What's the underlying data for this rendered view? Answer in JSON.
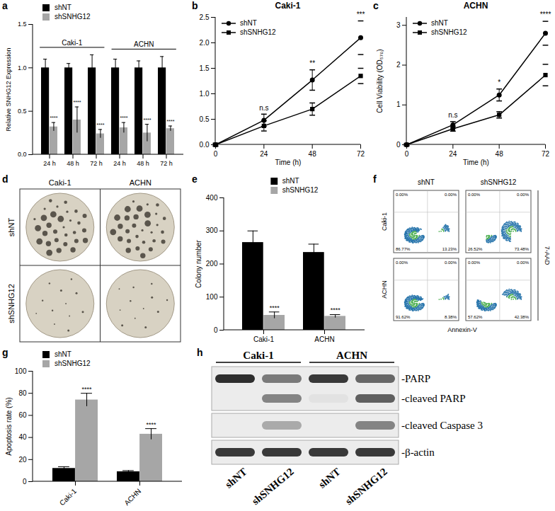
{
  "chart_data": [
    {
      "panel": "a",
      "type": "bar",
      "y_label": "Relative SNHG12 Expression",
      "categories": [
        "24 h",
        "48 h",
        "72 h",
        "24 h",
        "48 h",
        "72 h"
      ],
      "groups": [
        "Caki-1",
        "Caki-1",
        "Caki-1",
        "ACHN",
        "ACHN",
        "ACHN"
      ],
      "series": [
        {
          "name": "shNT",
          "color": "#000000",
          "values": [
            1,
            1,
            1,
            1,
            1,
            1
          ],
          "errors": [
            0.1,
            0.05,
            0.15,
            0.1,
            0.08,
            0.13
          ]
        },
        {
          "name": "shSNHG12",
          "color": "#a6a6a6",
          "values": [
            0.32,
            0.4,
            0.24,
            0.31,
            0.25,
            0.3
          ],
          "errors": [
            0.05,
            0.15,
            0.05,
            0.06,
            0.1,
            0.03
          ],
          "annotations": [
            "****",
            "****",
            "****",
            "****",
            "****",
            "****"
          ]
        }
      ],
      "ylim": [
        0,
        1.5
      ],
      "yticks": [
        {
          "value": 0,
          "label": "0.0"
        },
        {
          "value": 0.5,
          "label": "0.5"
        },
        {
          "value": 1,
          "label": "1.0"
        },
        {
          "value": 1.5,
          "label": "1.5"
        }
      ],
      "legend": "top-left"
    },
    {
      "panel": "b",
      "type": "line",
      "title": "Caki-1",
      "x_label": "Time (h)",
      "x": [
        0,
        24,
        48,
        72
      ],
      "series": [
        {
          "name": "shNT",
          "color": "#000000",
          "marker": "circle",
          "values": [
            0,
            0.48,
            1.27,
            2.1
          ],
          "errors": [
            0.03,
            0.12,
            0.2,
            0.33
          ]
        },
        {
          "name": "shSNHG12",
          "color": "#000000",
          "marker": "square",
          "values": [
            0,
            0.37,
            0.7,
            1.35
          ],
          "errors": [
            0.02,
            0.1,
            0.12,
            0.15
          ]
        }
      ],
      "annotations": [
        {
          "x": 24,
          "text": "n.s"
        },
        {
          "x": 48,
          "text": "**"
        },
        {
          "x": 72,
          "text": "***"
        }
      ],
      "xlim": [
        0,
        72
      ],
      "xticks": [
        0,
        24,
        48,
        72
      ],
      "ylim": [
        0,
        2.5
      ],
      "yticks": [
        {
          "value": 0,
          "label": "0.0"
        },
        {
          "value": 0.5,
          "label": "0.5"
        },
        {
          "value": 1,
          "label": "1.0"
        },
        {
          "value": 1.5,
          "label": "1.5"
        },
        {
          "value": 2,
          "label": "2.0"
        },
        {
          "value": 2.5,
          "label": "2.5"
        }
      ],
      "legend": "top-left"
    },
    {
      "panel": "c",
      "type": "line",
      "title": "ACHN",
      "x_label": "Time (h)",
      "y_label": "Cell Viability (OD₅₇₀)",
      "x": [
        0,
        24,
        48,
        72
      ],
      "series": [
        {
          "name": "shNT",
          "color": "#000000",
          "marker": "circle",
          "values": [
            0,
            0.5,
            1.25,
            2.8
          ],
          "errors": [
            0.03,
            0.08,
            0.15,
            0.3
          ]
        },
        {
          "name": "shSNHG12",
          "color": "#000000",
          "marker": "square",
          "values": [
            0,
            0.4,
            0.75,
            1.75
          ],
          "errors": [
            0.02,
            0.06,
            0.08,
            0.27
          ]
        }
      ],
      "annotations": [
        {
          "x": 24,
          "text": "n.s"
        },
        {
          "x": 48,
          "text": "*"
        },
        {
          "x": 72,
          "text": "****"
        }
      ],
      "xlim": [
        0,
        72
      ],
      "xticks": [
        0,
        24,
        48,
        72
      ],
      "ylim": [
        0,
        3.2
      ],
      "yticks": [
        0,
        1,
        2,
        3
      ],
      "legend": "top-left"
    },
    {
      "panel": "e",
      "type": "bar",
      "y_label": "Colony number",
      "categories": [
        "Caki-1",
        "ACHN"
      ],
      "series": [
        {
          "name": "shNT",
          "color": "#000000",
          "values": [
            265,
            235
          ],
          "errors": [
            35,
            25
          ]
        },
        {
          "name": "shSNHG12",
          "color": "#a6a6a6",
          "values": [
            45,
            42
          ],
          "errors": [
            10,
            5
          ],
          "annotations": [
            "****",
            "****"
          ]
        }
      ],
      "ylim": [
        0,
        400
      ],
      "yticks": [
        0,
        100,
        200,
        300,
        400
      ],
      "legend": "top"
    },
    {
      "panel": "g",
      "type": "bar",
      "y_label": "Apoptosis rate (%)",
      "categories": [
        "Caki-1",
        "ACHN"
      ],
      "series": [
        {
          "name": "shNT",
          "color": "#000000",
          "values": [
            12,
            9
          ],
          "errors": [
            1.5,
            1
          ]
        },
        {
          "name": "shSNHG12",
          "color": "#a6a6a6",
          "values": [
            74,
            43
          ],
          "errors": [
            6,
            5
          ],
          "annotations": [
            "****",
            "****"
          ]
        }
      ],
      "ylim": [
        0,
        100
      ],
      "yticks": [
        0,
        20,
        40,
        60,
        80,
        100
      ],
      "legend": "top-left"
    }
  ],
  "panel_d": {
    "panel": "d",
    "columns": [
      "Caki-1",
      "ACHN"
    ],
    "rows": [
      "shNT",
      "shSNHG12"
    ]
  },
  "panel_f": {
    "panel": "f",
    "rows": [
      "Caki-1",
      "ACHN"
    ],
    "columns": [
      "shNT",
      "shSNHG12"
    ],
    "x_label": "Annexin-V",
    "y_label": "7-AAD",
    "quadrants": [
      [
        [
          "0.00%",
          "0.00%",
          "86.77%",
          "13.23%"
        ],
        [
          "0.00%",
          "0.00%",
          "26.52%",
          "73.48%"
        ]
      ],
      [
        [
          "0.00%",
          "0.00%",
          "91.62%",
          "8.38%"
        ],
        [
          "0.00%",
          "0.00%",
          "57.62%",
          "42.38%"
        ]
      ]
    ]
  },
  "panel_h": {
    "panel": "h",
    "groups": [
      "Caki-1",
      "ACHN"
    ],
    "lanes": [
      "shNT",
      "shSNHG12",
      "shNT",
      "shSNHG12"
    ],
    "blots": [
      {
        "bands": [
          {
            "label": "-PARP",
            "intensity": [
              1,
              0.6,
              0.95,
              0.7
            ]
          },
          {
            "label": "-cleaved PARP",
            "intensity": [
              0,
              0.55,
              0.05,
              0.75
            ]
          }
        ]
      },
      {
        "bands": [
          {
            "label": "-cleaved Caspase 3",
            "intensity": [
              0,
              0.35,
              0,
              0.55
            ]
          }
        ]
      },
      {
        "bands": [
          {
            "label": "-β-actin",
            "intensity": [
              0.95,
              0.95,
              0.95,
              0.95
            ]
          }
        ]
      }
    ]
  }
}
